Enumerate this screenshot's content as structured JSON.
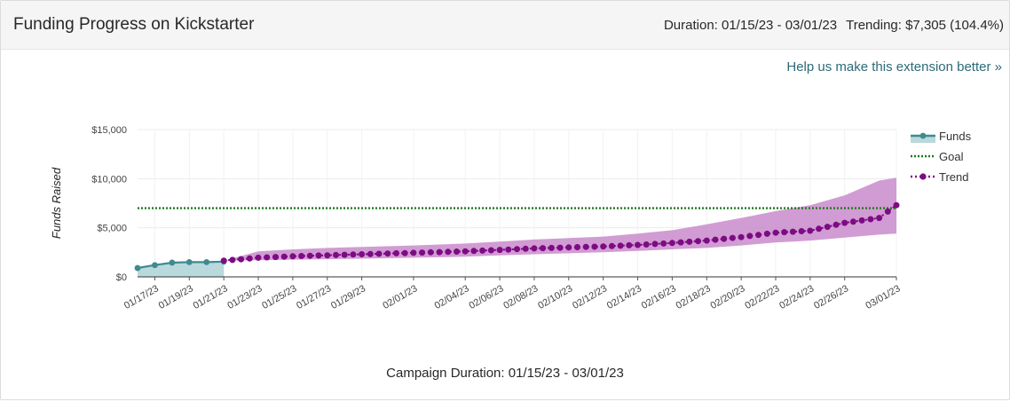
{
  "header": {
    "title": "Funding Progress on Kickstarter",
    "duration": "Duration: 01/15/23 - 03/01/23",
    "trending": "Trending: $7,305 (104.4%)"
  },
  "help_link": "Help us make this extension better »",
  "footer_label": "Campaign Duration: 01/15/23 - 03/01/23",
  "colors": {
    "funds": "#3f8a91",
    "funds_fill": "#b9d9dc",
    "goal": "#1f7a1f",
    "trend": "#7d0b83",
    "trend_band": "#c98bcb"
  },
  "chart_data": {
    "type": "line",
    "title": "",
    "xlabel": "",
    "ylabel": "Funds Raised",
    "ylim": [
      0,
      15000
    ],
    "yticks": [
      0,
      5000,
      10000,
      15000
    ],
    "ytick_labels": [
      "$0",
      "$5,000",
      "$10,000",
      "$15,000"
    ],
    "xlim": [
      "01/16/23",
      "03/01/23"
    ],
    "xtick_labels": [
      "01/17/23",
      "01/19/23",
      "01/21/23",
      "01/23/23",
      "01/25/23",
      "01/27/23",
      "01/29/23",
      "02/01/23",
      "02/04/23",
      "02/06/23",
      "02/08/23",
      "02/10/23",
      "02/12/23",
      "02/14/23",
      "02/16/23",
      "02/18/23",
      "02/20/23",
      "02/22/23",
      "02/24/23",
      "02/26/23",
      "03/01/23"
    ],
    "grid": true,
    "legend_position": "right",
    "goal": 7000,
    "series": [
      {
        "name": "Funds",
        "style": "solid-area",
        "x": [
          "01/16/23",
          "01/17/23",
          "01/18/23",
          "01/19/23",
          "01/20/23",
          "01/21/23"
        ],
        "y": [
          900,
          1200,
          1450,
          1500,
          1500,
          1550
        ]
      },
      {
        "name": "Goal",
        "style": "dotted",
        "value": 7000
      },
      {
        "name": "Trend",
        "style": "dotted-markers",
        "x": [
          "01/21/23",
          "01/23/23",
          "01/25/23",
          "01/27/23",
          "01/29/23",
          "02/01/23",
          "02/04/23",
          "02/06/23",
          "02/08/23",
          "02/10/23",
          "02/12/23",
          "02/14/23",
          "02/16/23",
          "02/18/23",
          "02/20/23",
          "02/22/23",
          "02/24/23",
          "02/26/23",
          "02/28/23",
          "03/01/23"
        ],
        "y": [
          1650,
          1950,
          2100,
          2200,
          2300,
          2450,
          2600,
          2750,
          2900,
          3000,
          3100,
          3250,
          3450,
          3700,
          4050,
          4500,
          4700,
          5500,
          6000,
          7305
        ],
        "band_low": [
          1650,
          1700,
          1750,
          1800,
          1850,
          1950,
          2050,
          2200,
          2300,
          2400,
          2500,
          2650,
          2800,
          2950,
          3200,
          3500,
          3700,
          4000,
          4300,
          4400
        ],
        "band_high": [
          1650,
          2600,
          2800,
          2950,
          3050,
          3200,
          3400,
          3600,
          3800,
          3950,
          4100,
          4400,
          4750,
          5350,
          6000,
          6700,
          7300,
          8300,
          9800,
          10100
        ]
      }
    ]
  }
}
